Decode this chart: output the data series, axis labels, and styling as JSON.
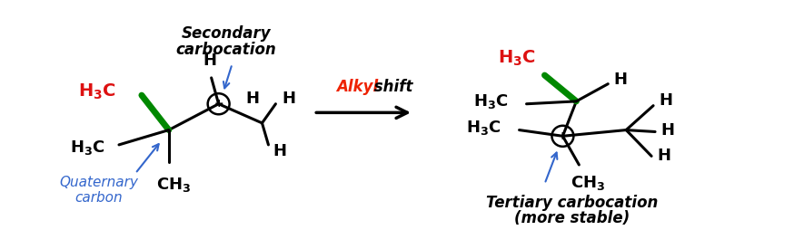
{
  "bg_color": "#ffffff",
  "black": "#000000",
  "red": "#dd1111",
  "green": "#008800",
  "blue": "#3366cc",
  "orange_red": "#ee2200",
  "fig_w": 8.74,
  "fig_h": 2.54,
  "dpi": 100,
  "secondary_label": "Secondary\ncarbocation",
  "quaternary_label": "Quaternary\ncarbon",
  "alkyl_label_colored": "Alkyl",
  "alkyl_label_plain": " shift",
  "tertiary_label_line1": "Tertiary carbocation",
  "tertiary_label_line2": "(more stable)"
}
